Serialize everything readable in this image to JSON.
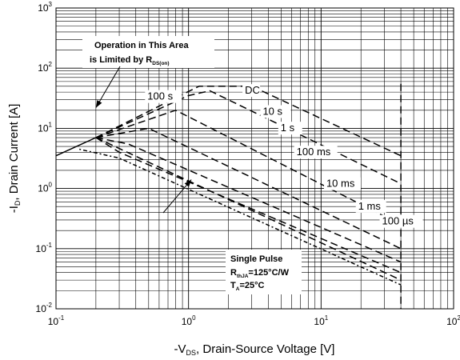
{
  "chart_data": {
    "type": "line",
    "scale": {
      "x": "log",
      "y": "log"
    },
    "xlim": [
      0.1,
      100
    ],
    "ylim": [
      0.01,
      1000
    ],
    "grid": true,
    "xlabel": {
      "prefix": "-V",
      "sub": "DS",
      "suffix": ", Drain-Source Voltage [V]"
    },
    "ylabel": {
      "prefix": "-I",
      "sub": "D",
      "suffix": ", Drain Current [A]"
    },
    "x_ticks": [
      {
        "base": "10",
        "exp": "-1",
        "value": 0.1
      },
      {
        "base": "10",
        "exp": "0",
        "value": 1
      },
      {
        "base": "10",
        "exp": "1",
        "value": 10
      },
      {
        "base": "10",
        "exp": "2",
        "value": 100
      }
    ],
    "y_ticks": [
      {
        "base": "10",
        "exp": "-2",
        "value": 0.01
      },
      {
        "base": "10",
        "exp": "-1",
        "value": 0.1
      },
      {
        "base": "10",
        "exp": "0",
        "value": 1
      },
      {
        "base": "10",
        "exp": "1",
        "value": 10
      },
      {
        "base": "10",
        "exp": "2",
        "value": 100
      },
      {
        "base": "10",
        "exp": "3",
        "value": 1000
      }
    ],
    "limit_lines": [
      {
        "name": "rds-limit",
        "style": "solid",
        "x": [
          0.1,
          0.2
        ],
        "y": [
          3.5,
          7.0
        ]
      },
      {
        "name": "vds-limit",
        "style": "dashed",
        "x": [
          40,
          40
        ],
        "y": [
          55,
          0.01
        ]
      }
    ],
    "series": [
      {
        "name": "100 µs",
        "style": "dashed",
        "x": [
          0.2,
          1.2,
          3.0,
          40
        ],
        "y": [
          7.0,
          50,
          50,
          3.5
        ],
        "label_at": [
          0.82,
          0.72
        ]
      },
      {
        "name": "1 ms",
        "style": "dashed",
        "x": [
          0.2,
          1.0,
          1.45,
          40
        ],
        "y": [
          7.0,
          35,
          42,
          1.2
        ],
        "label_at": [
          0.76,
          0.67
        ]
      },
      {
        "name": "10 ms",
        "style": "dashed",
        "x": [
          0.2,
          0.8,
          40
        ],
        "y": [
          7.0,
          20,
          0.25
        ],
        "label_at": [
          0.68,
          0.595
        ]
      },
      {
        "name": "100 ms",
        "style": "dashed",
        "x": [
          0.2,
          0.5,
          40
        ],
        "y": [
          7.0,
          10,
          0.1
        ],
        "label_at": [
          0.605,
          0.49
        ]
      },
      {
        "name": "1 s",
        "style": "dashed",
        "x": [
          0.2,
          0.35,
          40
        ],
        "y": [
          7.0,
          5.5,
          0.06
        ],
        "label_at": [
          0.565,
          0.41
        ]
      },
      {
        "name": "10 s",
        "style": "dashed",
        "x": [
          0.2,
          0.3,
          40
        ],
        "y": [
          7.0,
          4.0,
          0.04
        ],
        "label_at": [
          0.52,
          0.355
        ]
      },
      {
        "name": "100 s",
        "style": "dashed",
        "x": [
          0.2,
          40
        ],
        "y": [
          7.0,
          0.03
        ],
        "label_at": [
          0.23,
          0.305
        ]
      },
      {
        "name": "DC",
        "style": "dotted-dashed",
        "x": [
          0.15,
          0.3,
          40
        ],
        "y": [
          4.5,
          3.2,
          0.025
        ],
        "label_at": [
          0.475,
          0.285
        ]
      }
    ],
    "annotations": {
      "rds_note": {
        "line1": "Operation in This Area",
        "line2_prefix": "is Limited by R",
        "line2_sub": "DS(on)",
        "arrow_to": [
          0.2,
          22
        ]
      },
      "hundred_s_arrow_to": [
        1.05,
        1.4
      ],
      "pulse_note": {
        "line1": "Single Pulse",
        "line2_prefix": "R",
        "line2_sub": "thJA",
        "line2_suffix": "=125°C/W",
        "line3_prefix": "T",
        "line3_sub": "A",
        "line3_suffix": "=25°C"
      }
    }
  }
}
